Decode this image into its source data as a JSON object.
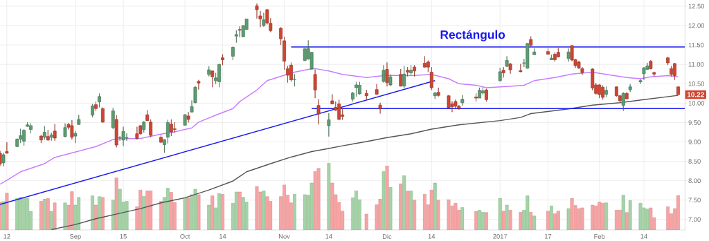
{
  "chart_data": {
    "type": "candlestick",
    "x": [
      "2016-08-10",
      "2016-08-11",
      "2016-08-12",
      "2016-08-15",
      "2016-08-16",
      "2016-08-17",
      "2016-08-18",
      "2016-08-19",
      "2016-08-22",
      "2016-08-23",
      "2016-08-24",
      "2016-08-25",
      "2016-08-26",
      "2016-08-29",
      "2016-08-30",
      "2016-08-31",
      "2016-09-01",
      "2016-09-02",
      "2016-09-06",
      "2016-09-07",
      "2016-09-08",
      "2016-09-09",
      "2016-09-12",
      "2016-09-13",
      "2016-09-14",
      "2016-09-15",
      "2016-09-16",
      "2016-09-19",
      "2016-09-20",
      "2016-09-21",
      "2016-09-22",
      "2016-09-23",
      "2016-09-26",
      "2016-09-27",
      "2016-09-28",
      "2016-09-29",
      "2016-09-30",
      "2016-10-03",
      "2016-10-04",
      "2016-10-05",
      "2016-10-06",
      "2016-10-07",
      "2016-10-10",
      "2016-10-11",
      "2016-10-12",
      "2016-10-13",
      "2016-10-14",
      "2016-10-17",
      "2016-10-18",
      "2016-10-19",
      "2016-10-20",
      "2016-10-21",
      "2016-10-24",
      "2016-10-25",
      "2016-10-26",
      "2016-10-27",
      "2016-10-28",
      "2016-10-31",
      "2016-11-01",
      "2016-11-02",
      "2016-11-03",
      "2016-11-04",
      "2016-11-07",
      "2016-11-08",
      "2016-11-09",
      "2016-11-10",
      "2016-11-11",
      "2016-11-14",
      "2016-11-15",
      "2016-11-16",
      "2016-11-17",
      "2016-11-18",
      "2016-11-21",
      "2016-11-22",
      "2016-11-23",
      "2016-11-25",
      "2016-11-28",
      "2016-11-29",
      "2016-11-30",
      "2016-12-01",
      "2016-12-02",
      "2016-12-05",
      "2016-12-06",
      "2016-12-07",
      "2016-12-08",
      "2016-12-09",
      "2016-12-12",
      "2016-12-13",
      "2016-12-14",
      "2016-12-15",
      "2016-12-16",
      "2016-12-19",
      "2016-12-20",
      "2016-12-21",
      "2016-12-22",
      "2016-12-23",
      "2016-12-27",
      "2016-12-28",
      "2016-12-29",
      "2016-12-30",
      "2017-01-03",
      "2017-01-04",
      "2017-01-05",
      "2017-01-06",
      "2017-01-09",
      "2017-01-10",
      "2017-01-11",
      "2017-01-12",
      "2017-01-13",
      "2017-01-17",
      "2017-01-18",
      "2017-01-19",
      "2017-01-20",
      "2017-01-23",
      "2017-01-24",
      "2017-01-25",
      "2017-01-26",
      "2017-01-27",
      "2017-01-30",
      "2017-01-31",
      "2017-02-01",
      "2017-02-02",
      "2017-02-03",
      "2017-02-06",
      "2017-02-07",
      "2017-02-08",
      "2017-02-09",
      "2017-02-10",
      "2017-02-13",
      "2017-02-14",
      "2017-02-15",
      "2017-02-16",
      "2017-02-17",
      "2017-02-21",
      "2017-02-22",
      "2017-02-23",
      "2017-02-24"
    ],
    "xlim": [
      "2016-08-10",
      "2017-02-26"
    ],
    "xticks": [
      {
        "value": "2016-08-12",
        "label": "12"
      },
      {
        "value": "2016-09-01",
        "label": "Sep"
      },
      {
        "value": "2016-09-15",
        "label": "15"
      },
      {
        "value": "2016-10-03",
        "label": "Oct"
      },
      {
        "value": "2016-10-14",
        "label": "14"
      },
      {
        "value": "2016-11-01",
        "label": "Nov"
      },
      {
        "value": "2016-11-14",
        "label": "14"
      },
      {
        "value": "2016-12-01",
        "label": "Dic"
      },
      {
        "value": "2016-12-14",
        "label": "14"
      },
      {
        "value": "2017-01-03",
        "label": "2017"
      },
      {
        "value": "2017-01-17",
        "label": "17"
      },
      {
        "value": "2017-02-01",
        "label": "Feb"
      },
      {
        "value": "2017-02-14",
        "label": "14"
      }
    ],
    "ylim": [
      6.73,
      12.66
    ],
    "yticks": [
      {
        "value": 7,
        "label": "7.00"
      },
      {
        "value": 7.5,
        "label": "7.50"
      },
      {
        "value": 8,
        "label": "8.00"
      },
      {
        "value": 8.5,
        "label": "8.50"
      },
      {
        "value": 9,
        "label": "9.00"
      },
      {
        "value": 9.5,
        "label": "9.50"
      },
      {
        "value": 10,
        "label": "10.00"
      },
      {
        "value": 10.5,
        "label": "10.50"
      },
      {
        "value": 11,
        "label": "11.00"
      },
      {
        "value": 11.5,
        "label": "11.50"
      },
      {
        "value": 12,
        "label": "12.00"
      },
      {
        "value": 12.5,
        "label": "12.50"
      }
    ],
    "grid": true,
    "annotations": [
      "Rectángulo",
      {
        "text": "10.22",
        "x": "2017-02-24",
        "y": 10.22
      }
    ],
    "series": [
      {
        "type": "bar",
        "values": [
          7.45,
          7.46,
          7.68,
          7.54,
          7.57,
          7.54,
          7.54,
          7.21,
          7.47,
          7.53,
          7.54,
          7.21,
          7.43,
          7.43,
          7.37,
          7.72,
          7.37,
          7.57,
          7.61,
          7.37,
          7.59,
          7.57,
          7.5,
          8.07,
          7.78,
          7.45,
          7.47,
          7.33,
          7.76,
          7.6,
          7.74,
          7.74,
          7.47,
          7.57,
          7.81,
          7.7,
          7.44,
          7.56,
          7.56,
          7.64,
          7.78,
          7.64,
          7.37,
          7.61,
          7.3,
          7.67,
          7.65,
          7.42,
          7.71,
          7.71,
          7.57,
          7.45,
          7.85,
          7.71,
          7.74,
          7.59,
          7.47,
          7.59,
          7.89,
          7.63,
          7.43,
          7.65,
          7.64,
          7.63,
          7.94,
          8.24,
          8.32,
          8.45,
          7.94,
          7.64,
          7.44,
          7.22,
          7.56,
          7.74,
          7.51,
          7.14,
          7.38,
          7.53,
          8.24,
          8.38,
          7.83,
          7.92,
          8.13,
          7.73,
          7.74,
          7.5,
          7.65,
          7.38,
          7.76,
          7.94,
          7.5,
          7.51,
          7.35,
          7.42,
          7.24,
          7.31,
          7.21,
          7.24,
          7.19,
          7.18,
          7.55,
          7.22,
          7.37,
          7.24,
          7.19,
          7.24,
          7.61,
          7.19,
          7.09,
          7.22,
          7.35,
          7.15,
          7.22,
          7.28,
          7.55,
          7.36,
          7.28,
          7.3,
          7.37,
          7.35,
          7.45,
          7.42,
          7.43,
          7.24,
          7.24,
          7.63,
          7.18,
          7.49,
          7.42,
          7.3,
          7.27,
          7.3,
          7.05,
          7.33,
          7.15,
          7.28,
          7.62
        ],
        "colors": [
          "#f8a3a3",
          "#a4d3a6",
          "#f8a3a3",
          "#a4d3a6",
          "#a4d3a6",
          "#a4d3a6",
          "#a4d3a6",
          "#a4d3a6",
          "#f8a3a3",
          "#a4d3a6",
          "#f8a3a3",
          "#a4d3a6",
          "#f8a3a3",
          "#a4d3a6",
          "#f8a3a3",
          "#f8a3a3",
          "#a4d3a6",
          "#a4d3a6",
          "#a4d3a6",
          "#f8a3a3",
          "#a4d3a6",
          "#f8a3a3",
          "#a4d3a6",
          "#f8a3a3",
          "#a4d3a6",
          "#a4d3a6",
          "#a4d3a6",
          "#f8a3a3",
          "#f8a3a3",
          "#a4d3a6",
          "#f8a3a3",
          "#f8a3a3",
          "#f8a3a3",
          "#a4d3a6",
          "#a4d3a6",
          "#f8a3a3",
          "#f8a3a3",
          "#a4d3a6",
          "#f8a3a3",
          "#a4d3a6",
          "#a4d3a6",
          "#f8a3a3",
          "#a4d3a6",
          "#f8a3a3",
          "#a4d3a6",
          "#a4d3a6",
          "#f8a3a3",
          "#a4d3a6",
          "#a4d3a6",
          "#f8a3a3",
          "#a4d3a6",
          "#a4d3a6",
          "#f8a3a3",
          "#f8a3a3",
          "#a4d3a6",
          "#f8a3a3",
          "#f8a3a3",
          "#f8a3a3",
          "#f8a3a3",
          "#f8a3a3",
          "#f8a3a3",
          "#a4d3a6",
          "#a4d3a6",
          "#a4d3a6",
          "#a4d3a6",
          "#f8a3a3",
          "#f8a3a3",
          "#a4d3a6",
          "#f8a3a3",
          "#f8a3a3",
          "#f8a3a3",
          "#f8a3a3",
          "#a4d3a6",
          "#a4d3a6",
          "#a4d3a6",
          "#f8a3a3",
          "#f8a3a3",
          "#f8a3a3",
          "#a4d3a6",
          "#f8a3a3",
          "#a4d3a6",
          "#f8a3a3",
          "#a4d3a6",
          "#f8a3a3",
          "#a4d3a6",
          "#f8a3a3",
          "#f8a3a3",
          "#f8a3a3",
          "#f8a3a3",
          "#a4d3a6",
          "#f8a3a3",
          "#f8a3a3",
          "#f8a3a3",
          "#f8a3a3",
          "#f8a3a3",
          "#a4d3a6",
          "#f8a3a3",
          "#a4d3a6",
          "#a4d3a6",
          "#f8a3a3",
          "#a4d3a6",
          "#f8a3a3",
          "#a4d3a6",
          "#f8a3a3",
          "#f8a3a3",
          "#a4d3a6",
          "#a4d3a6",
          "#f8a3a3",
          "#a4d3a6",
          "#f8a3a3",
          "#a4d3a6",
          "#f8a3a3",
          "#f8a3a3",
          "#a4d3a6",
          "#f8a3a3",
          "#f8a3a3",
          "#f8a3a3",
          "#f8a3a3",
          "#f8a3a3",
          "#f8a3a3",
          "#f8a3a3",
          "#f8a3a3",
          "#a4d3a6",
          "#f8a3a3",
          "#f8a3a3",
          "#a4d3a6",
          "#f8a3a3",
          "#a4d3a6",
          "#a4d3a6",
          "#a4d3a6",
          "#a4d3a6",
          "#f8a3a3",
          "#f8a3a3",
          "#f8a3a3",
          "#f8a3a3",
          "#f8a3a3",
          "#f8a3a3"
        ]
      },
      {
        "type": "line",
        "color": "#c77dff",
        "x": [
          "2016-08-10",
          "2016-08-12",
          "2016-08-16",
          "2016-08-23",
          "2016-08-26",
          "2016-09-01",
          "2016-09-07",
          "2016-09-12",
          "2016-09-14",
          "2016-09-20",
          "2016-09-26",
          "2016-09-30",
          "2016-10-05",
          "2016-10-07",
          "2016-10-12",
          "2016-10-17",
          "2016-10-19",
          "2016-10-24",
          "2016-10-27",
          "2016-11-01",
          "2016-11-03",
          "2016-11-08",
          "2016-11-10",
          "2016-11-14",
          "2016-11-18",
          "2016-11-25",
          "2016-12-01",
          "2016-12-08",
          "2016-12-14",
          "2016-12-19",
          "2016-12-22",
          "2016-12-27",
          "2016-12-30",
          "2017-01-05",
          "2017-01-10",
          "2017-01-13",
          "2017-01-19",
          "2017-01-24",
          "2017-01-30",
          "2017-02-03",
          "2017-02-09",
          "2017-02-13",
          "2017-02-16",
          "2017-02-21",
          "2017-02-24"
        ],
        "values": [
          7.91,
          8.01,
          8.23,
          8.44,
          8.6,
          8.74,
          8.88,
          9.06,
          9.08,
          9.09,
          9.2,
          9.26,
          9.36,
          9.51,
          9.69,
          9.86,
          10.04,
          10.34,
          10.58,
          10.72,
          10.78,
          10.87,
          10.89,
          10.83,
          10.74,
          10.66,
          10.72,
          10.71,
          10.74,
          10.63,
          10.5,
          10.46,
          10.4,
          10.43,
          10.46,
          10.58,
          10.66,
          10.75,
          10.8,
          10.74,
          10.66,
          10.63,
          10.68,
          10.71,
          10.68
        ]
      },
      {
        "type": "line",
        "color": "#555555",
        "x": [
          "2016-08-25",
          "2016-09-01",
          "2016-09-07",
          "2016-09-14",
          "2016-09-20",
          "2016-09-26",
          "2016-10-03",
          "2016-10-10",
          "2016-10-17",
          "2016-10-21",
          "2016-10-28",
          "2016-11-03",
          "2016-11-09",
          "2016-11-14",
          "2016-11-18",
          "2016-11-25",
          "2016-12-01",
          "2016-12-08",
          "2016-12-14",
          "2016-12-22",
          "2017-01-03",
          "2017-01-09",
          "2017-01-12",
          "2017-01-23",
          "2017-01-30",
          "2017-02-07",
          "2017-02-14",
          "2017-02-24"
        ],
        "values": [
          6.74,
          6.87,
          7.02,
          7.16,
          7.28,
          7.43,
          7.56,
          7.76,
          7.99,
          8.23,
          8.44,
          8.61,
          8.75,
          8.83,
          8.9,
          9.01,
          9.11,
          9.21,
          9.33,
          9.44,
          9.55,
          9.63,
          9.73,
          9.85,
          9.95,
          10.01,
          10.09,
          10.2
        ]
      },
      {
        "type": "line",
        "color": "#1a1aee",
        "x": [
          "2016-08-10",
          "2016-12-15"
        ],
        "values": [
          7.39,
          10.58
        ]
      },
      {
        "type": "line",
        "color": "#1a1aee",
        "x": [
          "2016-11-03",
          "2017-02-26"
        ],
        "values": [
          11.45,
          11.45
        ]
      },
      {
        "type": "line",
        "color": "#1a1aee",
        "x": [
          "2016-11-09",
          "2017-02-26"
        ],
        "values": [
          9.86,
          9.86
        ]
      },
      {
        "ohlc": [
          [
            8.71,
            8.77,
            8.38,
            8.43
          ],
          [
            8.46,
            8.72,
            8.37,
            8.67
          ],
          [
            8.75,
            8.99,
            8.7,
            8.71
          ],
          [
            8.88,
            9.09,
            8.87,
            9.07
          ],
          [
            9.07,
            9.34,
            8.97,
            9.16
          ],
          [
            9.02,
            9.33,
            8.9,
            9.3
          ],
          [
            9.4,
            9.51,
            9.39,
            9.44
          ],
          [
            9.32,
            9.48,
            9.22,
            9.42
          ],
          [
            9.15,
            9.18,
            8.97,
            9.05
          ],
          [
            9.12,
            9.41,
            9.06,
            9.25
          ],
          [
            9.14,
            9.31,
            9.03,
            9.05
          ],
          [
            9.12,
            9.24,
            9.03,
            9.18
          ],
          [
            9.28,
            9.46,
            9.03,
            9.1
          ],
          [
            9.14,
            9.48,
            9.12,
            9.37
          ],
          [
            9.45,
            9.49,
            9.32,
            9.38
          ],
          [
            9.42,
            9.56,
            9.06,
            9.12
          ],
          [
            9.15,
            9.28,
            8.97,
            9.22
          ],
          [
            9.45,
            9.7,
            9.44,
            9.58
          ],
          [
            9.69,
            9.98,
            9.63,
            9.93
          ],
          [
            9.96,
            10.04,
            9.8,
            9.86
          ],
          [
            10.03,
            10.25,
            9.89,
            10.17
          ],
          [
            9.86,
            9.89,
            9.5,
            9.51
          ],
          [
            9.37,
            9.88,
            9.33,
            9.8
          ],
          [
            9.58,
            9.69,
            8.86,
            8.92
          ],
          [
            9.1,
            9.15,
            9.03,
            9.11
          ],
          [
            9.05,
            9.39,
            8.9,
            9.27
          ],
          [
            9.1,
            9.22,
            9.03,
            9.11
          ],
          [
            9.21,
            9.39,
            9.06,
            9.09
          ],
          [
            9.42,
            9.43,
            9.19,
            9.21
          ],
          [
            9.32,
            9.54,
            9.24,
            9.51
          ],
          [
            9.7,
            9.82,
            9.54,
            9.55
          ],
          [
            9.51,
            9.58,
            9.12,
            9.17
          ],
          [
            9.12,
            9.18,
            8.97,
            8.99
          ],
          [
            8.93,
            9.07,
            8.72,
            9.06
          ],
          [
            9.12,
            9.57,
            8.96,
            9.5
          ],
          [
            9.46,
            9.58,
            9.15,
            9.26
          ],
          [
            9.34,
            9.51,
            9.24,
            9.32
          ],
          [
            9.43,
            9.72,
            9.42,
            9.7
          ],
          [
            9.67,
            9.77,
            9.5,
            9.58
          ],
          [
            9.77,
            10.07,
            9.76,
            9.91
          ],
          [
            10.01,
            10.44,
            10.0,
            10.41
          ],
          [
            10.56,
            10.6,
            10.35,
            10.52
          ],
          [
            10.74,
            10.95,
            10.69,
            10.86
          ],
          [
            10.83,
            10.84,
            10.41,
            10.68
          ],
          [
            10.58,
            10.78,
            10.49,
            10.65
          ],
          [
            10.55,
            11.01,
            10.41,
            11.0
          ],
          [
            11.17,
            11.26,
            10.98,
            11.12
          ],
          [
            11.21,
            11.46,
            11.11,
            11.44
          ],
          [
            11.73,
            11.88,
            11.56,
            11.77
          ],
          [
            11.9,
            11.98,
            11.7,
            11.88
          ],
          [
            11.71,
            12.01,
            11.7,
            12.0
          ],
          [
            11.9,
            12.18,
            11.89,
            12.17
          ],
          [
            12.51,
            12.57,
            12.18,
            12.41
          ],
          [
            12.25,
            12.38,
            11.96,
            12.17
          ],
          [
            12.0,
            12.33,
            11.97,
            12.15
          ],
          [
            12.41,
            12.43,
            12.03,
            12.07
          ],
          [
            12.06,
            12.19,
            11.83,
            11.87
          ],
          [
            11.93,
            11.96,
            11.5,
            11.66
          ],
          [
            11.61,
            11.71,
            10.86,
            11.08
          ],
          [
            10.89,
            10.96,
            10.53,
            10.72
          ],
          [
            10.98,
            11.05,
            10.55,
            10.6
          ],
          [
            10.61,
            10.75,
            10.43,
            10.62
          ],
          [
            11.1,
            11.42,
            11.08,
            11.4
          ],
          [
            11.14,
            11.62,
            11.12,
            11.41
          ],
          [
            10.88,
            11.32,
            10.87,
            11.31
          ],
          [
            10.74,
            10.87,
            10.13,
            10.34
          ],
          [
            9.94,
            10.1,
            9.45,
            9.72
          ],
          [
            9.42,
            9.74,
            9.14,
            9.57
          ],
          [
            10.06,
            10.23,
            9.97,
            9.98
          ],
          [
            9.89,
            10.04,
            9.8,
            9.82
          ],
          [
            9.98,
            10.09,
            9.57,
            9.58
          ],
          [
            9.7,
            9.86,
            9.57,
            9.66
          ],
          [
            10.1,
            10.29,
            10.04,
            10.26
          ],
          [
            10.4,
            10.55,
            10.17,
            10.47
          ],
          [
            10.24,
            10.55,
            10.22,
            10.46
          ],
          [
            10.25,
            10.34,
            10.1,
            10.19
          ],
          [
            10.35,
            10.49,
            10.22,
            10.23
          ],
          [
            9.95,
            10.01,
            9.73,
            9.85
          ],
          [
            10.56,
            10.98,
            10.53,
            10.85
          ],
          [
            10.87,
            11.05,
            10.43,
            10.53
          ],
          [
            10.47,
            10.74,
            10.44,
            10.68
          ],
          [
            10.74,
            10.88,
            10.43,
            10.44
          ],
          [
            10.44,
            10.96,
            10.39,
            10.75
          ],
          [
            10.85,
            10.93,
            10.69,
            10.8
          ],
          [
            10.78,
            10.98,
            10.72,
            10.85
          ],
          [
            10.93,
            10.98,
            10.69,
            10.83
          ],
          [
            11.03,
            11.21,
            10.92,
            10.93
          ],
          [
            11.06,
            11.1,
            10.8,
            10.93
          ],
          [
            10.8,
            10.93,
            10.34,
            10.4
          ],
          [
            10.19,
            10.29,
            10.11,
            10.26
          ],
          [
            10.28,
            10.4,
            10.17,
            10.2
          ],
          [
            10.19,
            10.21,
            9.86,
            9.88
          ],
          [
            9.98,
            10.05,
            9.77,
            9.91
          ],
          [
            10.04,
            10.09,
            9.86,
            9.92
          ],
          [
            9.92,
            9.95,
            9.83,
            9.86
          ],
          [
            10.01,
            10.21,
            9.93,
            10.1
          ],
          [
            10.16,
            10.25,
            10.04,
            10.13
          ],
          [
            10.13,
            10.4,
            10.13,
            10.33
          ],
          [
            10.26,
            10.41,
            10.22,
            10.32
          ],
          [
            10.34,
            10.37,
            10.04,
            10.09
          ],
          [
            10.58,
            10.91,
            10.56,
            10.81
          ],
          [
            10.85,
            10.93,
            10.66,
            10.78
          ],
          [
            10.95,
            11.21,
            10.93,
            11.1
          ],
          [
            11.01,
            11.04,
            10.76,
            10.86
          ],
          [
            10.84,
            11.01,
            10.8,
            10.81
          ],
          [
            11.03,
            11.14,
            10.93,
            11.04
          ],
          [
            10.9,
            11.55,
            10.89,
            11.54
          ],
          [
            11.64,
            11.72,
            11.47,
            11.49
          ],
          [
            11.25,
            11.41,
            11.24,
            11.32
          ],
          [
            11.33,
            11.41,
            11.25,
            11.26
          ],
          [
            11.12,
            11.25,
            11.11,
            11.16
          ],
          [
            11.26,
            11.31,
            11.07,
            11.12
          ],
          [
            11.31,
            11.42,
            11.18,
            11.19
          ],
          [
            11.15,
            11.41,
            11.07,
            11.32
          ],
          [
            11.48,
            11.5,
            11.08,
            11.11
          ],
          [
            11.12,
            11.14,
            10.91,
            10.97
          ],
          [
            11.06,
            11.09,
            10.88,
            10.91
          ],
          [
            10.89,
            10.93,
            10.73,
            10.79
          ],
          [
            10.88,
            10.9,
            10.33,
            10.39
          ],
          [
            10.47,
            10.52,
            10.22,
            10.25
          ],
          [
            10.47,
            10.49,
            10.13,
            10.22
          ],
          [
            10.41,
            10.46,
            10.09,
            10.15
          ],
          [
            10.23,
            10.43,
            10.16,
            10.33
          ],
          [
            10.42,
            10.43,
            10.17,
            10.19
          ],
          [
            10.19,
            10.22,
            10.03,
            10.06
          ],
          [
            9.94,
            10.28,
            9.8,
            10.25
          ],
          [
            10.25,
            10.28,
            10.1,
            10.11
          ],
          [
            10.35,
            10.49,
            10.29,
            10.42
          ],
          [
            10.55,
            10.62,
            10.5,
            10.58
          ],
          [
            10.76,
            10.93,
            10.6,
            10.91
          ],
          [
            10.87,
            11.04,
            10.86,
            10.96
          ],
          [
            11.08,
            11.11,
            10.87,
            10.89
          ],
          [
            10.79,
            10.81,
            10.69,
            10.75
          ],
          [
            11.17,
            11.19,
            10.98,
            11.04
          ],
          [
            10.89,
            10.96,
            10.69,
            10.74
          ],
          [
            11.02,
            11.04,
            10.6,
            10.71
          ],
          [
            10.42,
            10.43,
            10.21,
            10.22
          ]
        ],
        "colors": [
          "#cf4532",
          "#5c9c72",
          "#cf4532",
          "#5c9c72",
          "#5c9c72",
          "#5c9c72",
          "#5c9c72",
          "#5c9c72",
          "#cf4532",
          "#5c9c72",
          "#cf4532",
          "#5c9c72",
          "#cf4532",
          "#5c9c72",
          "#cf4532",
          "#cf4532",
          "#5c9c72",
          "#5c9c72",
          "#5c9c72",
          "#cf4532",
          "#5c9c72",
          "#cf4532",
          "#5c9c72",
          "#cf4532",
          "#5c9c72",
          "#5c9c72",
          "#5c9c72",
          "#cf4532",
          "#cf4532",
          "#5c9c72",
          "#cf4532",
          "#cf4532",
          "#cf4532",
          "#5c9c72",
          "#5c9c72",
          "#cf4532",
          "#cf4532",
          "#5c9c72",
          "#cf4532",
          "#5c9c72",
          "#5c9c72",
          "#cf4532",
          "#5c9c72",
          "#cf4532",
          "#5c9c72",
          "#5c9c72",
          "#cf4532",
          "#5c9c72",
          "#5c9c72",
          "#cf4532",
          "#5c9c72",
          "#5c9c72",
          "#cf4532",
          "#cf4532",
          "#5c9c72",
          "#cf4532",
          "#cf4532",
          "#cf4532",
          "#cf4532",
          "#cf4532",
          "#cf4532",
          "#5c9c72",
          "#5c9c72",
          "#5c9c72",
          "#5c9c72",
          "#cf4532",
          "#cf4532",
          "#5c9c72",
          "#cf4532",
          "#cf4532",
          "#cf4532",
          "#cf4532",
          "#5c9c72",
          "#5c9c72",
          "#5c9c72",
          "#cf4532",
          "#cf4532",
          "#cf4532",
          "#5c9c72",
          "#cf4532",
          "#5c9c72",
          "#cf4532",
          "#5c9c72",
          "#cf4532",
          "#5c9c72",
          "#cf4532",
          "#cf4532",
          "#cf4532",
          "#cf4532",
          "#5c9c72",
          "#cf4532",
          "#cf4532",
          "#cf4532",
          "#cf4532",
          "#cf4532",
          "#5c9c72",
          "#cf4532",
          "#5c9c72",
          "#5c9c72",
          "#cf4532",
          "#5c9c72",
          "#cf4532",
          "#5c9c72",
          "#cf4532",
          "#cf4532",
          "#5c9c72",
          "#5c9c72",
          "#cf4532",
          "#5c9c72",
          "#cf4532",
          "#5c9c72",
          "#cf4532",
          "#cf4532",
          "#5c9c72",
          "#cf4532",
          "#cf4532",
          "#cf4532",
          "#cf4532",
          "#cf4532",
          "#cf4532",
          "#cf4532",
          "#cf4532",
          "#5c9c72",
          "#cf4532",
          "#cf4532",
          "#5c9c72",
          "#cf4532",
          "#5c9c72",
          "#5c9c72",
          "#5c9c72",
          "#5c9c72",
          "#cf4532",
          "#cf4532",
          "#cf4532",
          "#cf4532",
          "#cf4532",
          "#cf4532"
        ]
      }
    ]
  }
}
